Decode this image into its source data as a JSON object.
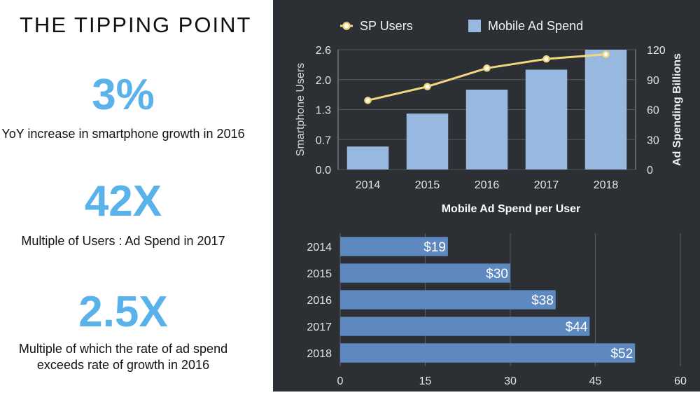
{
  "title": "THE TIPPING POINT",
  "stats": [
    {
      "value": "3%",
      "description": "YoY increase in smartphone growth in 2016"
    },
    {
      "value": "42X",
      "description": "Multiple of Users : Ad Spend in 2017"
    },
    {
      "value": "2.5X",
      "description": "Multiple of which the rate of ad spend exceeds rate of growth in 2016"
    }
  ],
  "colors": {
    "accent": "#5ab2ea",
    "panel_bg": "#2c2f33",
    "bar_top": "#97b9df",
    "line": "#f2d77f",
    "bar_bottom": "#5d89c0"
  },
  "chart_data": [
    {
      "type": "bar+line",
      "title": "",
      "categories": [
        "2014",
        "2015",
        "2016",
        "2017",
        "2018"
      ],
      "series": [
        {
          "name": "SP Users",
          "kind": "line",
          "axis": "left",
          "values": [
            1.5,
            1.8,
            2.2,
            2.4,
            2.5
          ]
        },
        {
          "name": "Mobile Ad Spend",
          "kind": "bar",
          "axis": "right",
          "values": [
            23,
            56,
            80,
            100,
            120
          ]
        }
      ],
      "ylabel_left": "Smartphone Users",
      "ylabel_right": "Ad Spending Billions",
      "yticks_left": [
        "0.0",
        "0.7",
        "1.3",
        "2.0",
        "2.6"
      ],
      "yticks_right": [
        "0",
        "30",
        "60",
        "90",
        "120"
      ],
      "ylim_left": [
        0,
        2.6
      ],
      "ylim_right": [
        0,
        120
      ],
      "legend": "top",
      "grid": true
    },
    {
      "type": "bar",
      "orientation": "horizontal",
      "title": "Mobile Ad Spend per User",
      "categories": [
        "2014",
        "2015",
        "2016",
        "2017",
        "2018"
      ],
      "values": [
        19,
        30,
        38,
        44,
        52
      ],
      "labels": [
        "$19",
        "$30",
        "$38",
        "$44",
        "$52"
      ],
      "xticks": [
        "0",
        "15",
        "30",
        "45",
        "60"
      ],
      "xlim": [
        0,
        60
      ],
      "grid": true
    }
  ]
}
